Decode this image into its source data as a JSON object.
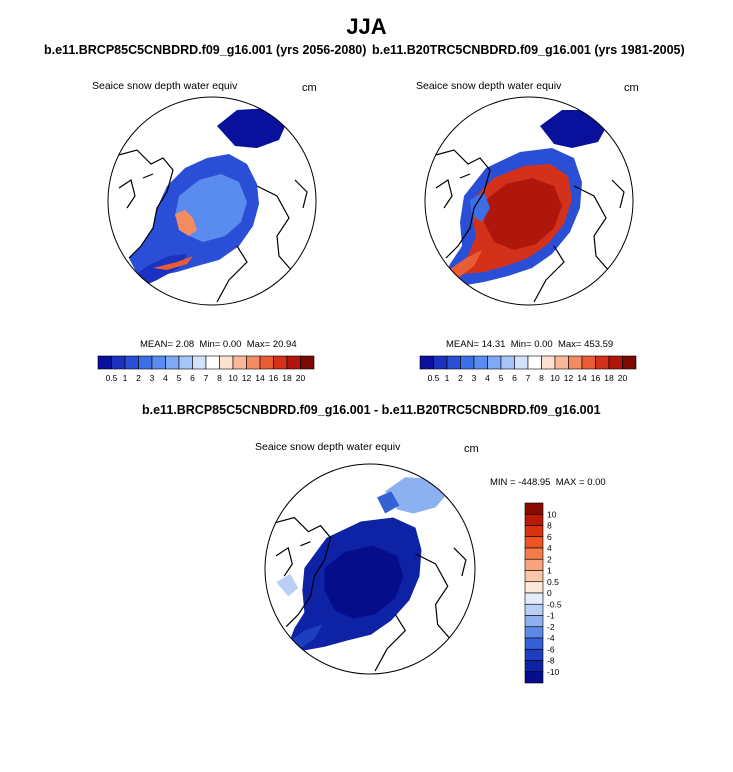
{
  "title": "JJA",
  "panels": [
    {
      "case_title": "b.e11.BRCP85C5CNBDRD.f09_g16.001 (yrs 2056-2080)",
      "variable": "Seaice snow depth water equiv",
      "units": "cm",
      "stats": {
        "mean_label": "MEAN=",
        "mean": "2.08",
        "min_label": "Min=",
        "min": "0.00",
        "max_label": "Max=",
        "max": "20.94"
      }
    },
    {
      "case_title": "b.e11.B20TRC5CNBDRD.f09_g16.001 (yrs 1981-2005)",
      "variable": "Seaice snow depth water equiv",
      "units": "cm",
      "stats": {
        "mean_label": "MEAN=",
        "mean": "14.31",
        "min_label": "Min=",
        "min": "0.00",
        "max_label": "Max=",
        "max": "453.59"
      }
    },
    {
      "case_title": "b.e11.BRCP85C5CNBDRD.f09_g16.001 - b.e11.B20TRC5CNBDRD.f09_g16.001",
      "variable": "Seaice snow depth water equiv",
      "units": "cm",
      "stats": {
        "min_label": "MIN =",
        "min": "-448.95",
        "max_label": "MAX =",
        "max": "0.00"
      }
    }
  ],
  "colorbar_abs": {
    "labels": [
      "0.5",
      "1",
      "2",
      "3",
      "4",
      "5",
      "6",
      "7",
      "8",
      "10",
      "12",
      "14",
      "16",
      "18",
      "20"
    ],
    "colors": [
      "#08109c",
      "#1b31bf",
      "#2a4fd6",
      "#3c6fe6",
      "#5a8cf0",
      "#7fa8f5",
      "#a6c4f8",
      "#d2e2fa",
      "#ffffff",
      "#fde0cf",
      "#f9b89a",
      "#f48b62",
      "#ea5c33",
      "#d3311a",
      "#b0170c",
      "#7a0a03"
    ]
  },
  "colorbar_diff": {
    "labels": [
      "10",
      "8",
      "6",
      "4",
      "2",
      "1",
      "0.5",
      "0",
      "-0.5",
      "-1",
      "-2",
      "-4",
      "-6",
      "-8",
      "-10"
    ],
    "colors": [
      "#8a0b00",
      "#b81a05",
      "#d8320f",
      "#ec5426",
      "#f47b4a",
      "#f9a47c",
      "#fbc7a9",
      "#fde8dc",
      "#e4edfb",
      "#b9cff6",
      "#8db0f0",
      "#5d89e4",
      "#3561d6",
      "#1d3ec1",
      "#0e22a6",
      "#050d8a"
    ]
  }
}
